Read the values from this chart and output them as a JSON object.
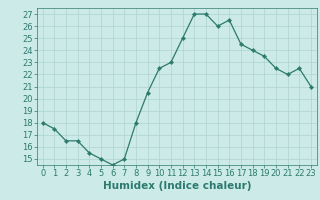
{
  "x": [
    0,
    1,
    2,
    3,
    4,
    5,
    6,
    7,
    8,
    9,
    10,
    11,
    12,
    13,
    14,
    15,
    16,
    17,
    18,
    19,
    20,
    21,
    22,
    23
  ],
  "y": [
    18,
    17.5,
    16.5,
    16.5,
    15.5,
    15,
    14.5,
    15,
    18,
    20.5,
    22.5,
    23,
    25,
    27,
    27,
    26,
    26.5,
    24.5,
    24,
    23.5,
    22.5,
    22,
    22.5,
    21
  ],
  "xlabel": "Humidex (Indice chaleur)",
  "xlim": [
    -0.5,
    23.5
  ],
  "ylim": [
    14.5,
    27.5
  ],
  "yticks": [
    15,
    16,
    17,
    18,
    19,
    20,
    21,
    22,
    23,
    24,
    25,
    26,
    27
  ],
  "xticks": [
    0,
    1,
    2,
    3,
    4,
    5,
    6,
    7,
    8,
    9,
    10,
    11,
    12,
    13,
    14,
    15,
    16,
    17,
    18,
    19,
    20,
    21,
    22,
    23
  ],
  "line_color": "#2d7a6e",
  "marker": "D",
  "marker_size": 2.2,
  "bg_color": "#cceae8",
  "grid_color": "#b0d4d0",
  "tick_color": "#2d7a6e",
  "label_color": "#2d7a6e",
  "xlabel_fontsize": 7.5,
  "tick_fontsize": 6.0
}
